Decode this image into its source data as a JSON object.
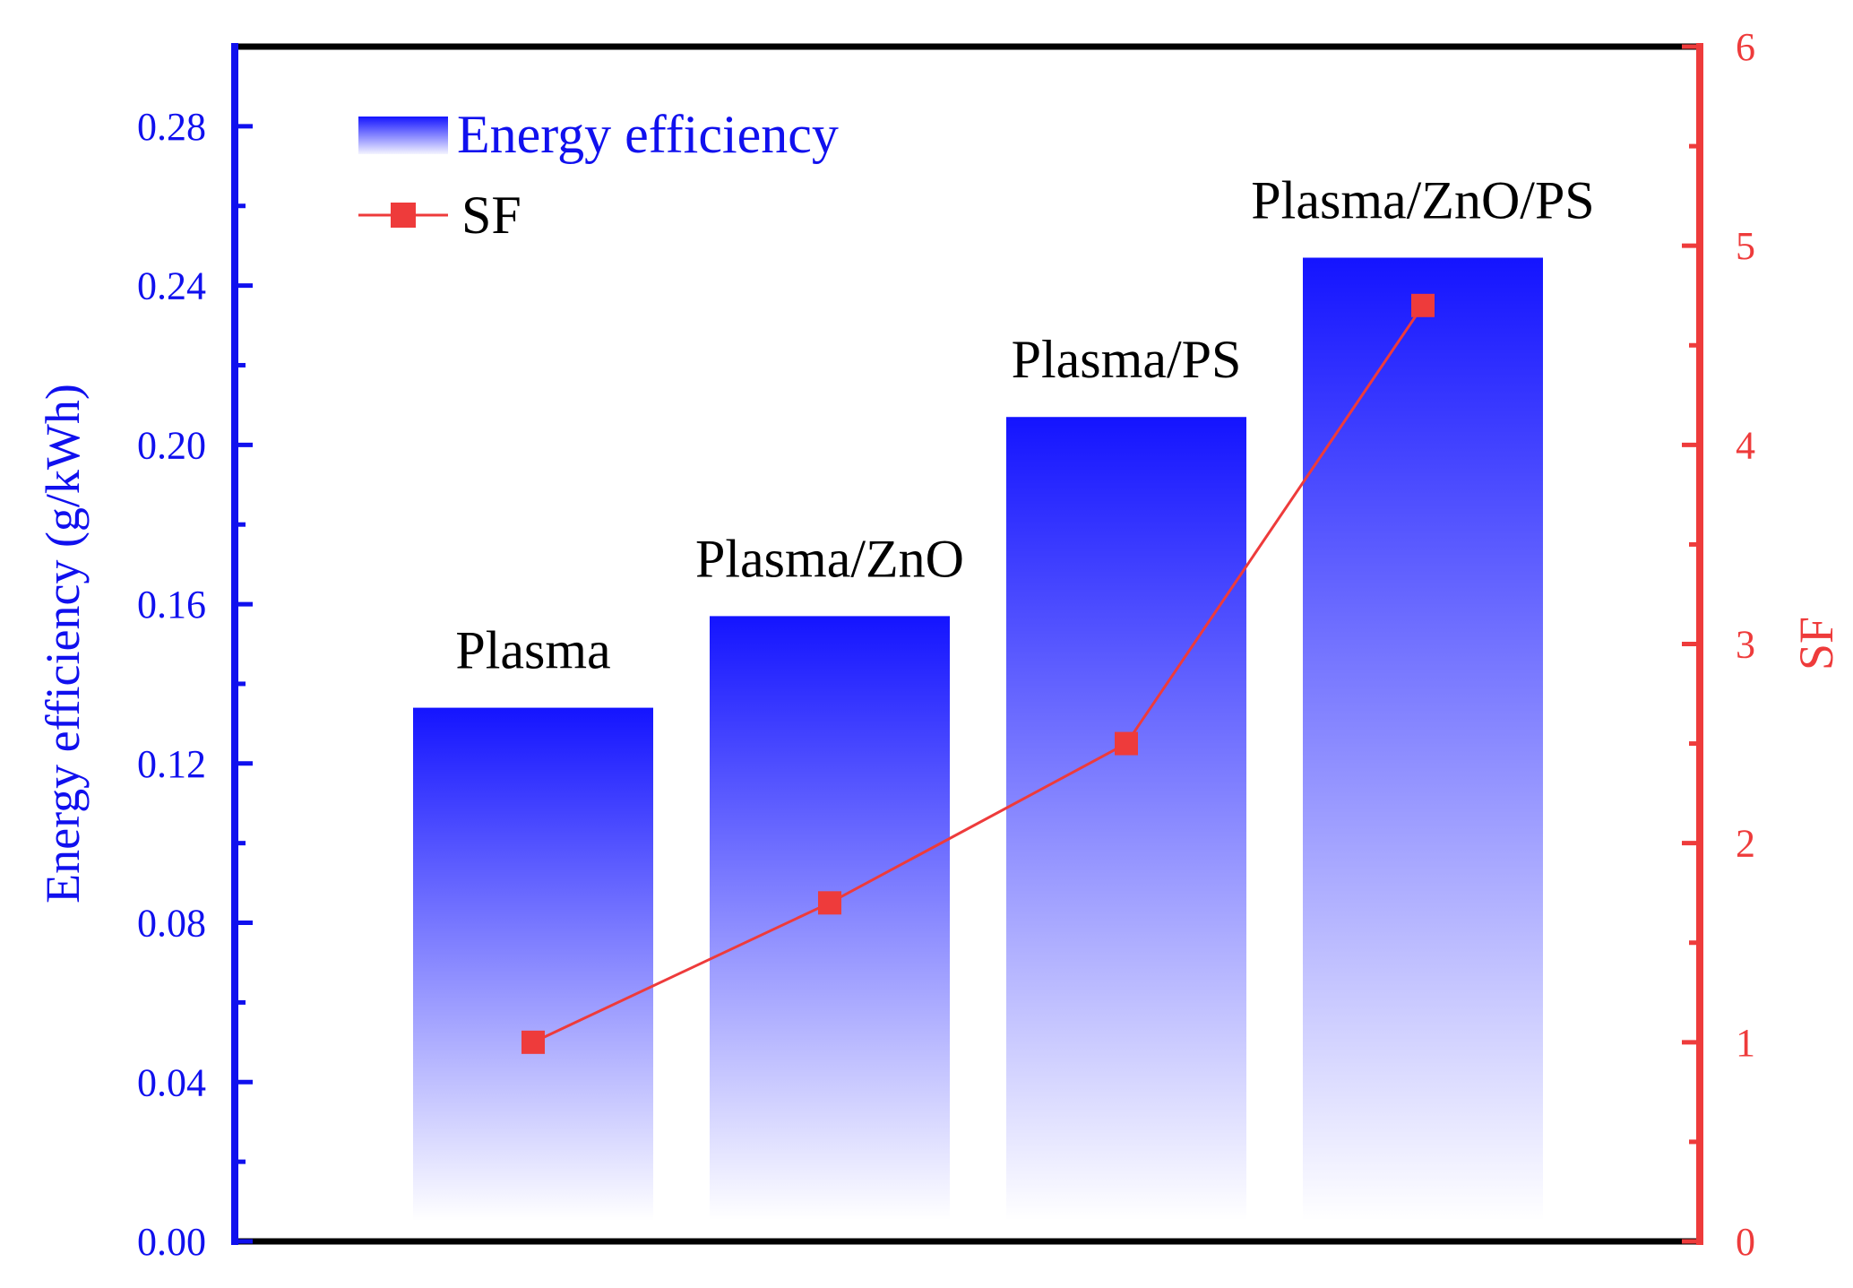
{
  "chart_data": {
    "type": "bar",
    "categories": [
      "Plasma",
      "Plasma/ZnO",
      "Plasma/PS",
      "Plasma/ZnO/PS"
    ],
    "series": [
      {
        "name": "Energy efficiency",
        "kind": "bar",
        "axis": "left",
        "values": [
          0.134,
          0.157,
          0.207,
          0.247
        ]
      },
      {
        "name": "SF",
        "kind": "line",
        "marker": "square",
        "axis": "right",
        "values": [
          1.0,
          1.7,
          2.5,
          4.7
        ]
      }
    ],
    "title": "",
    "xlabel": "",
    "ylabel": "Energy efficiency (g/kWh)",
    "y2label": "SF",
    "ylim": [
      0,
      0.3
    ],
    "y2lim": [
      0,
      6
    ],
    "yticks": [
      "0.00",
      "0.04",
      "0.08",
      "0.12",
      "0.16",
      "0.20",
      "0.24",
      "0.28"
    ],
    "y2ticks": [
      "0",
      "1",
      "2",
      "3",
      "4",
      "5",
      "6"
    ],
    "legend": {
      "placement": "top-left",
      "entries": [
        "Energy efficiency",
        "SF"
      ]
    },
    "grid": false
  },
  "colors": {
    "bar": "#1414ff",
    "left_axis": "#1010ee",
    "right_axis": "#ee3b3b",
    "line": "#ee3b3b",
    "frame": "#000000"
  }
}
